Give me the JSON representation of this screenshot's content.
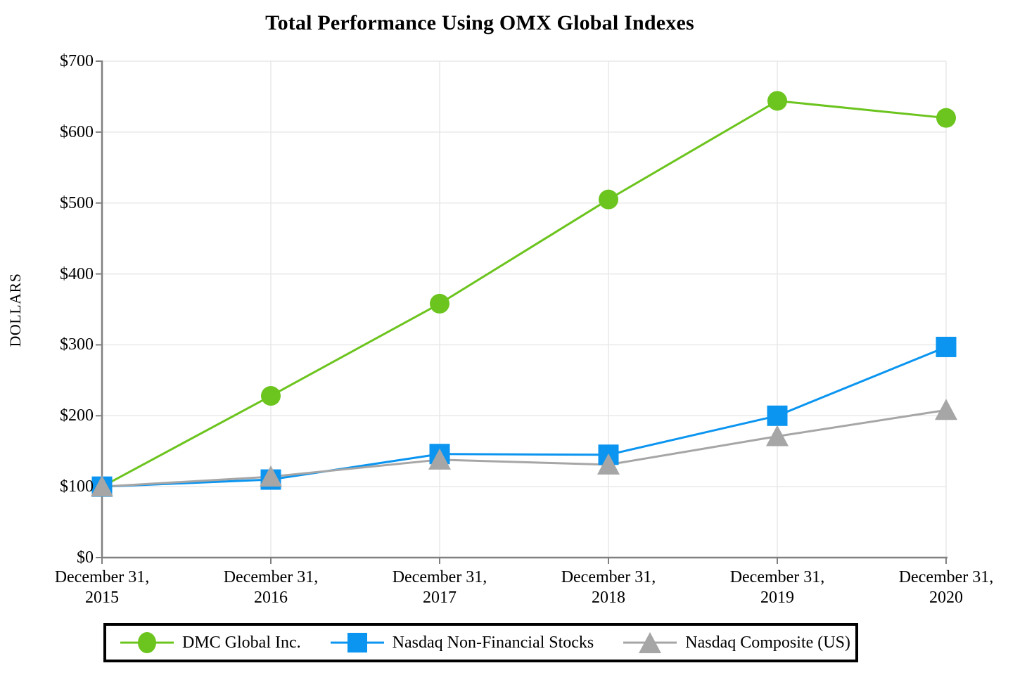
{
  "title": "Total Performance Using OMX Global Indexes",
  "chart_data": {
    "type": "line",
    "title": "Total Performance Using OMX Global Indexes",
    "xlabel": "",
    "ylabel": "DOLLARS",
    "ylim": [
      0,
      700
    ],
    "ytick_step": 100,
    "ytick_prefix": "$",
    "grid": true,
    "legend_position": "bottom",
    "x_labels": [
      {
        "line1": "December 31,",
        "line2": "2015"
      },
      {
        "line1": "December 31,",
        "line2": "2016"
      },
      {
        "line1": "December 31,",
        "line2": "2017"
      },
      {
        "line1": "December 31,",
        "line2": "2018"
      },
      {
        "line1": "December 31,",
        "line2": "2019"
      },
      {
        "line1": "December 31,",
        "line2": "2020"
      }
    ],
    "series": [
      {
        "name": "DMC Global Inc.",
        "marker": "circle",
        "color": "#6CC41E",
        "values": [
          100,
          228,
          358,
          505,
          644,
          620
        ]
      },
      {
        "name": "Nasdaq Non-Financial Stocks",
        "marker": "square",
        "color": "#0B95F0",
        "values": [
          100,
          110,
          146,
          145,
          200,
          297
        ]
      },
      {
        "name": "Nasdaq Composite (US)",
        "marker": "triangle",
        "color": "#A6A6A6",
        "values": [
          100,
          114,
          138,
          131,
          171,
          208
        ]
      }
    ]
  },
  "colors": {
    "axis": "#808080",
    "grid": "#E8E8E8",
    "legend_border": "#000000",
    "background": "#FFFFFF",
    "text": "#000000"
  }
}
